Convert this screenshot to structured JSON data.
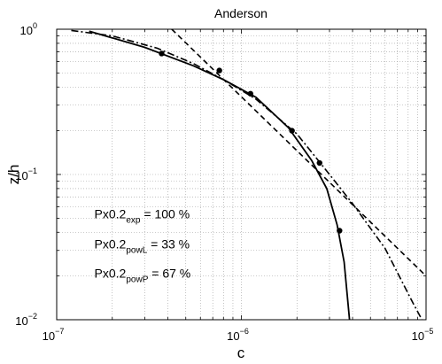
{
  "chart_data": {
    "type": "line",
    "title": "Anderson",
    "xlabel": "c",
    "ylabel": "z/h",
    "xscale": "log",
    "yscale": "log",
    "xlim": [
      1e-07,
      1e-05
    ],
    "ylim": [
      0.01,
      1
    ],
    "grid": "on (major and minor, dotted)",
    "x_ticks": [
      {
        "base": "10",
        "exp": "−7",
        "value": 1e-07
      },
      {
        "base": "10",
        "exp": "−6",
        "value": 1e-06
      },
      {
        "base": "10",
        "exp": "−5",
        "value": 1e-05
      }
    ],
    "y_ticks": [
      {
        "base": "10",
        "exp": "0",
        "value": 1
      },
      {
        "base": "10",
        "exp": "−1",
        "value": 0.1
      },
      {
        "base": "10",
        "exp": "−2",
        "value": 0.01
      }
    ],
    "series": [
      {
        "style": "markers",
        "marker": "filled-circle",
        "color": "#000000",
        "points": [
          {
            "x": 3.7e-07,
            "y": 0.68
          },
          {
            "x": 7.6e-07,
            "y": 0.52
          },
          {
            "x": 1.12e-06,
            "y": 0.36
          },
          {
            "x": 1.88e-06,
            "y": 0.2
          },
          {
            "x": 2.65e-06,
            "y": 0.12
          },
          {
            "x": 3.4e-06,
            "y": 0.041
          }
        ]
      },
      {
        "style": "solid",
        "color": "#000000",
        "points": [
          {
            "x": 1.5e-07,
            "y": 0.97
          },
          {
            "x": 3e-07,
            "y": 0.75
          },
          {
            "x": 5.5e-07,
            "y": 0.56
          },
          {
            "x": 8e-07,
            "y": 0.45
          },
          {
            "x": 1.2e-06,
            "y": 0.34
          },
          {
            "x": 1.8e-06,
            "y": 0.21
          },
          {
            "x": 2.4e-06,
            "y": 0.125
          },
          {
            "x": 2.9e-06,
            "y": 0.08
          },
          {
            "x": 3.3e-06,
            "y": 0.045
          },
          {
            "x": 3.6e-06,
            "y": 0.025
          },
          {
            "x": 3.8e-06,
            "y": 0.012
          },
          {
            "x": 3.85e-06,
            "y": 0.01
          }
        ]
      },
      {
        "style": "dashed",
        "color": "#000000",
        "points": [
          {
            "x": 4.2e-07,
            "y": 1.0
          },
          {
            "x": 1e-05,
            "y": 0.02
          }
        ]
      },
      {
        "style": "dash-dot",
        "color": "#000000",
        "points": [
          {
            "x": 1.2e-07,
            "y": 0.98
          },
          {
            "x": 2e-07,
            "y": 0.9
          },
          {
            "x": 3.5e-07,
            "y": 0.74
          },
          {
            "x": 5.5e-07,
            "y": 0.58
          },
          {
            "x": 8e-07,
            "y": 0.45
          },
          {
            "x": 1.2e-06,
            "y": 0.33
          },
          {
            "x": 2e-06,
            "y": 0.19
          },
          {
            "x": 3e-06,
            "y": 0.1
          },
          {
            "x": 4e-06,
            "y": 0.063
          },
          {
            "x": 6e-06,
            "y": 0.031
          },
          {
            "x": 8.5e-06,
            "y": 0.013
          },
          {
            "x": 9.5e-06,
            "y": 0.01
          }
        ]
      }
    ],
    "annotations": [
      {
        "prefix": "Px0.2",
        "sub": "exp",
        "suffix": " = 100 %",
        "x": 1.6e-07,
        "y": 0.05
      },
      {
        "prefix": "Px0.2",
        "sub": "powL",
        "suffix": " = 33 %",
        "x": 1.6e-07,
        "y": 0.031
      },
      {
        "prefix": "Px0.2",
        "sub": "powP",
        "suffix": " = 67 %",
        "x": 1.6e-07,
        "y": 0.0195
      }
    ]
  }
}
